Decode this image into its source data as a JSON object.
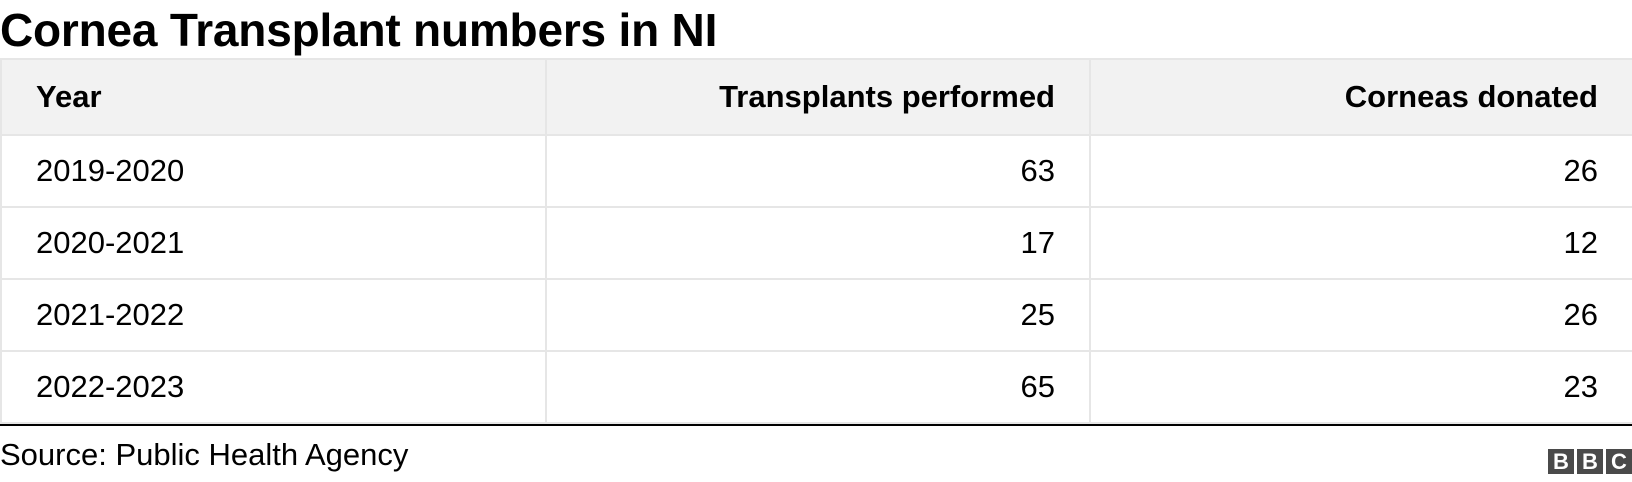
{
  "title": "Cornea Transplant numbers in NI",
  "source": "Source: Public Health Agency",
  "logo_text": "BBC",
  "chart_data": {
    "type": "table",
    "title": "Cornea Transplant numbers in NI",
    "columns": [
      "Year",
      "Transplants performed",
      "Corneas donated"
    ],
    "rows": [
      {
        "year": "2019-2020",
        "transplants": "63",
        "donated": "26"
      },
      {
        "year": "2020-2021",
        "transplants": "17",
        "donated": "12"
      },
      {
        "year": "2021-2022",
        "transplants": "25",
        "donated": "26"
      },
      {
        "year": "2022-2023",
        "transplants": "65",
        "donated": "23"
      }
    ]
  },
  "colors": {
    "header_background": "#f2f2f2",
    "grid_line": "#e6e6e6",
    "logo_block": "#4a4a4a"
  }
}
